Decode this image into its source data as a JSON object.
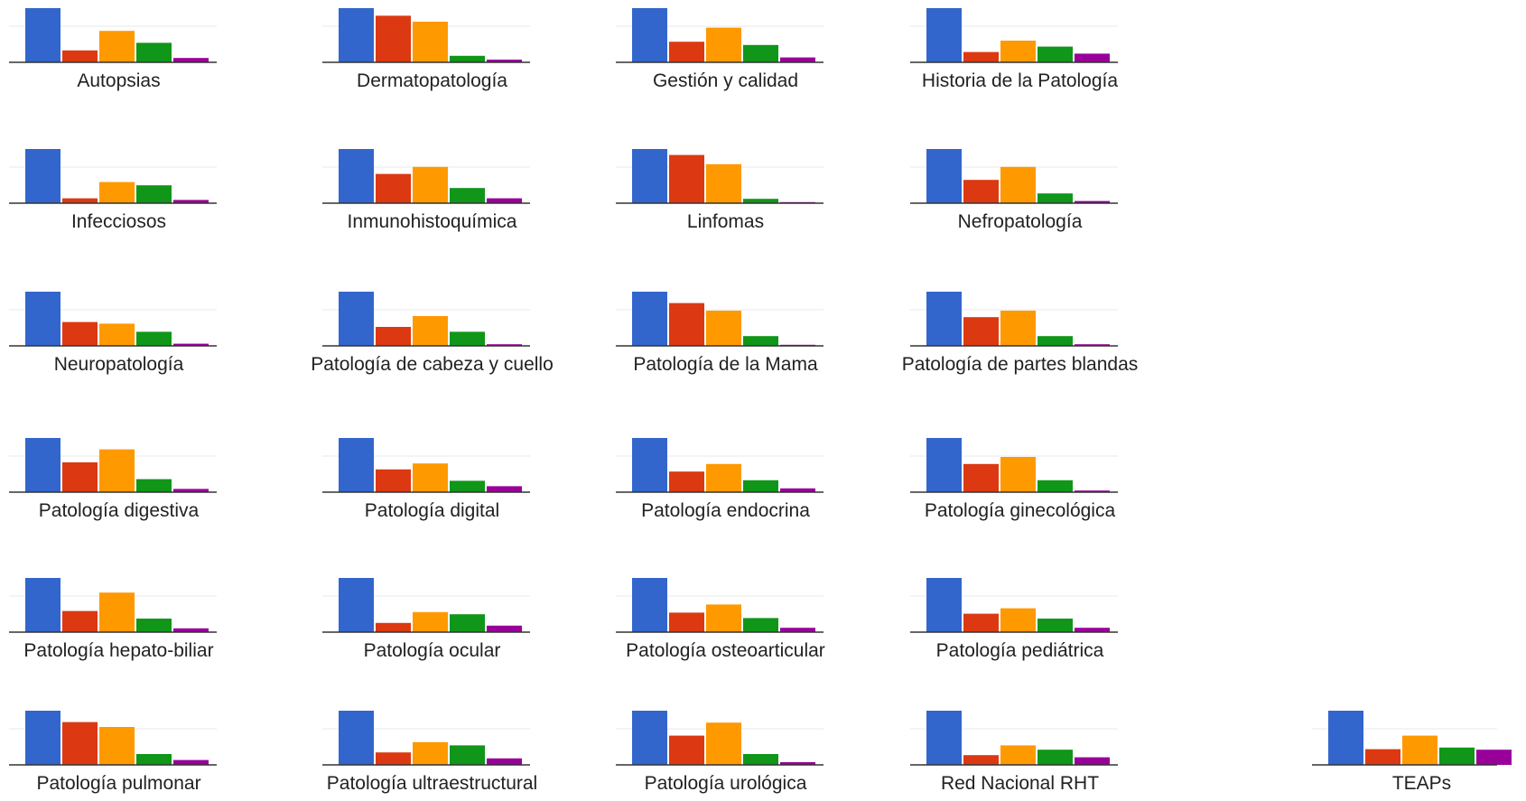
{
  "chart_data": {
    "type": "bar",
    "layout": "small-multiples",
    "grid": true,
    "ylim": [
      0,
      1
    ],
    "colors": [
      "#3366cc",
      "#dc3912",
      "#ff9900",
      "#109618",
      "#990099"
    ],
    "panels": [
      {
        "category": "Autopsias",
        "values": [
          1.0,
          0.22,
          0.58,
          0.36,
          0.08
        ]
      },
      {
        "category": "Dermatopatología",
        "values": [
          1.0,
          0.86,
          0.75,
          0.12,
          0.05
        ]
      },
      {
        "category": "Gestión y calidad",
        "values": [
          1.0,
          0.38,
          0.64,
          0.32,
          0.09
        ]
      },
      {
        "category": "Historia de la Patología",
        "values": [
          1.0,
          0.19,
          0.4,
          0.29,
          0.16
        ]
      },
      {
        "category": "Infecciosos",
        "values": [
          1.0,
          0.09,
          0.39,
          0.33,
          0.06
        ]
      },
      {
        "category": "Inmunohistoquímica",
        "values": [
          1.0,
          0.54,
          0.67,
          0.28,
          0.09
        ]
      },
      {
        "category": "Linfomas",
        "values": [
          1.0,
          0.89,
          0.72,
          0.08,
          0.02
        ]
      },
      {
        "category": "Nefropatología",
        "values": [
          1.0,
          0.43,
          0.67,
          0.18,
          0.04
        ]
      },
      {
        "category": "Neuropatología",
        "values": [
          1.0,
          0.44,
          0.41,
          0.26,
          0.04
        ]
      },
      {
        "category": "Patología de cabeza y cuello",
        "values": [
          1.0,
          0.35,
          0.55,
          0.26,
          0.03
        ]
      },
      {
        "category": "Patología de la Mama",
        "values": [
          1.0,
          0.79,
          0.65,
          0.18,
          0.02
        ]
      },
      {
        "category": "Patología de partes blandas",
        "values": [
          1.0,
          0.53,
          0.65,
          0.18,
          0.03
        ]
      },
      {
        "category": "Patología digestiva",
        "values": [
          1.0,
          0.55,
          0.79,
          0.24,
          0.06
        ]
      },
      {
        "category": "Patología digital",
        "values": [
          1.0,
          0.42,
          0.53,
          0.21,
          0.11
        ]
      },
      {
        "category": "Patología endocrina",
        "values": [
          1.0,
          0.38,
          0.52,
          0.22,
          0.07
        ]
      },
      {
        "category": "Patología ginecológica",
        "values": [
          1.0,
          0.52,
          0.65,
          0.22,
          0.03
        ]
      },
      {
        "category": "Patología hepato-biliar",
        "values": [
          1.0,
          0.39,
          0.73,
          0.25,
          0.07
        ]
      },
      {
        "category": "Patología ocular",
        "values": [
          1.0,
          0.17,
          0.37,
          0.33,
          0.12
        ]
      },
      {
        "category": "Patología osteoarticular",
        "values": [
          1.0,
          0.36,
          0.51,
          0.26,
          0.08
        ]
      },
      {
        "category": "Patología pediátrica",
        "values": [
          1.0,
          0.34,
          0.44,
          0.25,
          0.08
        ]
      },
      {
        "category": "Patología pulmonar",
        "values": [
          1.0,
          0.79,
          0.7,
          0.2,
          0.09
        ]
      },
      {
        "category": "Patología ultraestructural",
        "values": [
          1.0,
          0.23,
          0.42,
          0.36,
          0.12
        ]
      },
      {
        "category": "Patología urológica",
        "values": [
          1.0,
          0.54,
          0.78,
          0.2,
          0.05
        ]
      },
      {
        "category": "Red Nacional RHT",
        "values": [
          1.0,
          0.18,
          0.36,
          0.28,
          0.14
        ]
      },
      {
        "category": "TEAPs",
        "values": [
          1.0,
          0.29,
          0.54,
          0.32,
          0.28
        ]
      }
    ]
  }
}
